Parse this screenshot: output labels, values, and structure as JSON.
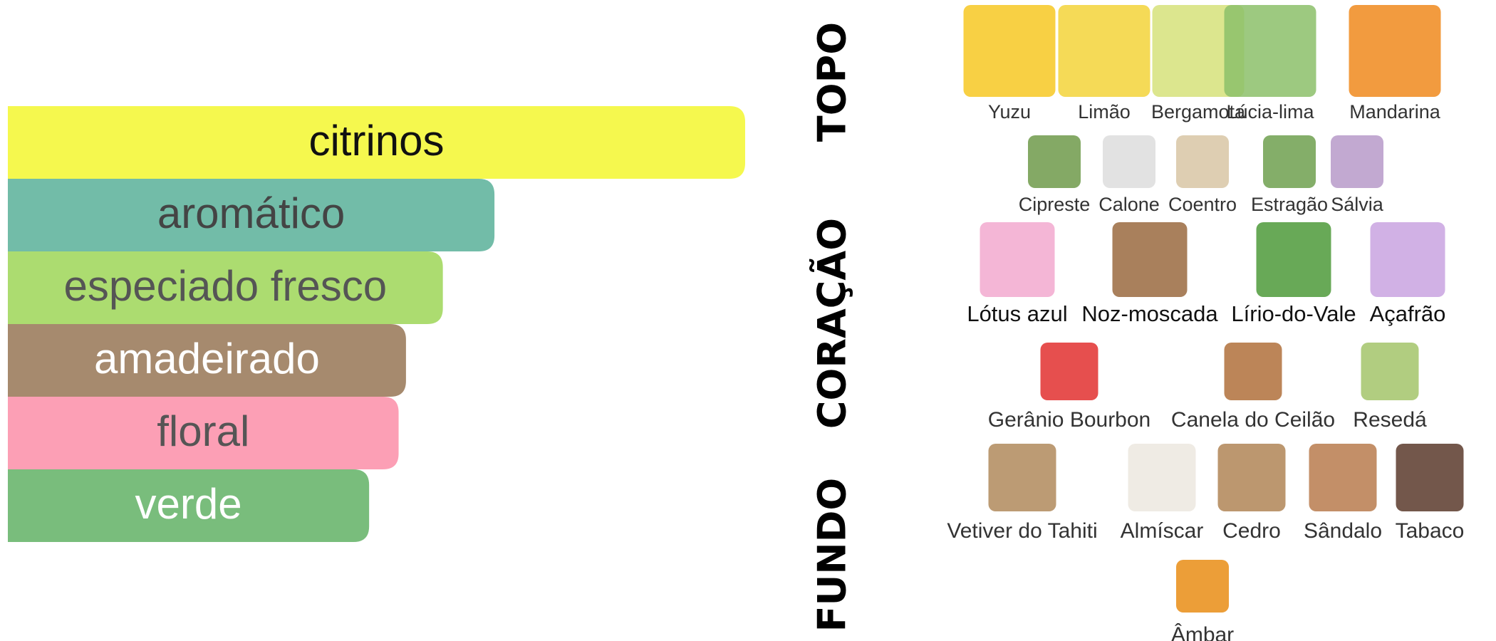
{
  "chart_data": {
    "type": "bar",
    "categories": [
      "citrinos",
      "aromático",
      "especiado fresco",
      "amadeirado",
      "floral",
      "verde"
    ],
    "values": [
      100,
      66,
      59,
      54,
      53,
      49
    ],
    "colors": [
      "#f5f84e",
      "#72bca8",
      "#acdc70",
      "#a68a6e",
      "#fc9fb5",
      "#79bd7c"
    ],
    "label_colors": [
      "#111111",
      "#444444",
      "#555555",
      "#ffffff",
      "#555555",
      "#ffffff"
    ],
    "xlim": [
      0,
      100
    ]
  },
  "notes": {
    "sections": [
      {
        "label": "TOPO",
        "rows": [
          [
            {
              "name": "Yuzu",
              "color": "#f7c823"
            },
            {
              "name": "Limão",
              "color": "#f3d33a"
            },
            {
              "name": "Bergamota",
              "color": "#d6e27a"
            },
            {
              "name": "Lúcia-lima",
              "color": "#8cbf6a"
            },
            {
              "name": "Mandarina",
              "color": "#f08a1d"
            }
          ],
          [
            {
              "name": "Cipreste",
              "color": "#6f9a4a"
            },
            {
              "name": "Calone",
              "color": "#dddddd"
            },
            {
              "name": "Coentro",
              "color": "#d8c5a4"
            },
            {
              "name": "Estragão",
              "color": "#6fa04f"
            },
            {
              "name": "Sálvia",
              "color": "#b79ac9"
            }
          ]
        ]
      },
      {
        "label": "CORAÇÃO",
        "rows": [
          [
            {
              "name": "Lótus azul",
              "color": "#f2a9cf"
            },
            {
              "name": "Noz-moscada",
              "color": "#9a6a3f"
            },
            {
              "name": "Lírio-do-Vale",
              "color": "#4e9a3a"
            },
            {
              "name": "Açafrão",
              "color": "#c9a3e0"
            }
          ],
          [
            {
              "name": "Gerânio Bourbon",
              "color": "#e2302f"
            },
            {
              "name": "Canela do Ceilão",
              "color": "#b0703b"
            },
            {
              "name": "Resedá",
              "color": "#a3c46a"
            }
          ]
        ]
      },
      {
        "label": "FUNDO",
        "rows": [
          [
            {
              "name": "Vetiver do Tahiti",
              "color": "#b08a5c"
            },
            {
              "name": "Almíscar",
              "color": "#ece7df"
            },
            {
              "name": "Cedro",
              "color": "#b08556"
            },
            {
              "name": "Sândalo",
              "color": "#b97b4e"
            },
            {
              "name": "Tabaco",
              "color": "#5a3a2c"
            }
          ],
          [
            {
              "name": "Âmbar",
              "color": "#e98d15"
            }
          ]
        ]
      }
    ]
  }
}
